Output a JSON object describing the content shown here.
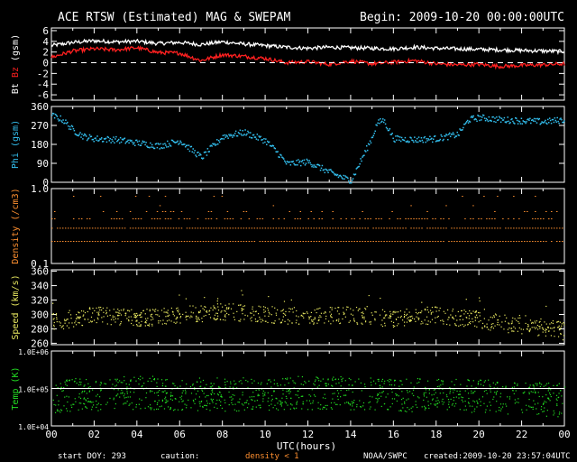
{
  "header": {
    "title": "ACE RTSW (Estimated) MAG & SWEPAM",
    "begin": "Begin: 2009-10-20 00:00:00UTC"
  },
  "footer": {
    "start_doy": "start DOY: 293",
    "caution": "caution:",
    "density_note": "density < 1",
    "agency": "NOAA/SWPC",
    "created": "created:2009-10-20 23:57:04UTC"
  },
  "colors": {
    "bt": "#ffffff",
    "bz": "#ff2020",
    "phi": "#33c0f0",
    "density": "#ff9030",
    "speed": "#e8e860",
    "temp": "#22dd22",
    "axis": "#ffffff",
    "background": "#000000"
  },
  "chart_data": [
    {
      "type": "scatter",
      "ylabel_parts": [
        "Bt",
        "Bz",
        "(gsm)"
      ],
      "yticks": [
        "6",
        "4",
        "2",
        "0",
        "-2",
        "-4",
        "-6"
      ],
      "ylim": [
        -7,
        6.5
      ],
      "xlim": [
        0,
        24
      ],
      "zero_line": true,
      "series": [
        {
          "name": "Bt",
          "x": [
            0,
            1,
            2,
            3,
            4,
            5,
            6,
            7,
            8,
            9,
            10,
            11,
            12,
            13,
            14,
            15,
            16,
            17,
            18,
            19,
            20,
            21,
            22,
            23,
            24
          ],
          "y": [
            3.2,
            3.8,
            4.1,
            3.9,
            4.0,
            3.6,
            3.8,
            3.4,
            3.9,
            3.5,
            3.2,
            2.9,
            2.7,
            2.9,
            2.8,
            2.7,
            2.6,
            2.9,
            2.7,
            2.6,
            2.5,
            2.4,
            2.3,
            2.2,
            2.1
          ]
        },
        {
          "name": "Bz",
          "x": [
            0,
            1,
            2,
            3,
            4,
            5,
            6,
            7,
            8,
            9,
            10,
            11,
            12,
            13,
            14,
            15,
            16,
            17,
            18,
            19,
            20,
            21,
            22,
            23,
            24
          ],
          "y": [
            1.0,
            2.2,
            2.6,
            2.4,
            2.8,
            1.9,
            1.8,
            0.4,
            1.5,
            1.2,
            0.8,
            0.0,
            0.2,
            -0.3,
            0.3,
            -0.2,
            0.1,
            0.4,
            -0.2,
            -0.4,
            -0.3,
            -0.7,
            -0.5,
            -0.4,
            -0.2
          ]
        }
      ]
    },
    {
      "type": "scatter",
      "ylabel_parts": [
        "Phi",
        "(gsm)"
      ],
      "yticks": [
        "360",
        "270",
        "180",
        "90",
        "0"
      ],
      "ylim": [
        0,
        360
      ],
      "xlim": [
        0,
        24
      ],
      "series": [
        {
          "name": "Phi",
          "x": [
            0,
            0.5,
            1,
            1.5,
            2,
            3,
            4,
            5,
            6,
            7,
            8,
            9,
            10,
            10.5,
            11,
            12,
            13,
            13.5,
            14,
            15,
            15.2,
            15.5,
            16,
            17,
            18,
            19,
            19.5,
            20,
            21,
            22,
            23,
            24
          ],
          "y": [
            320,
            300,
            250,
            220,
            210,
            205,
            190,
            175,
            200,
            120,
            220,
            240,
            200,
            150,
            90,
            100,
            50,
            30,
            10,
            220,
            280,
            300,
            210,
            205,
            210,
            230,
            300,
            310,
            300,
            295,
            290,
            300
          ]
        }
      ]
    },
    {
      "type": "scatter",
      "ylabel_parts": [
        "Density",
        "(/cm3)"
      ],
      "yticks": [
        "1.0",
        "0.1"
      ],
      "log_scale": true,
      "ylim": [
        0.1,
        1.0
      ],
      "xlim": [
        0,
        24
      ],
      "series": [
        {
          "name": "Density",
          "levels": [
            0.2,
            0.3,
            0.4,
            0.5,
            0.6,
            0.8
          ],
          "density": [
            0.95,
            0.95,
            0.55,
            0.2,
            0.05,
            0.04
          ]
        }
      ]
    },
    {
      "type": "scatter",
      "ylabel_parts": [
        "Speed",
        "(km/s)"
      ],
      "yticks": [
        "360",
        "340",
        "320",
        "300",
        "280",
        "260"
      ],
      "ylim": [
        258,
        362
      ],
      "xlim": [
        0,
        24
      ],
      "series": [
        {
          "name": "Speed",
          "x": [
            0,
            2,
            4,
            6,
            8,
            10,
            12,
            14,
            16,
            18,
            20,
            22,
            24
          ],
          "y": [
            290,
            300,
            295,
            300,
            305,
            300,
            298,
            300,
            295,
            300,
            292,
            285,
            280
          ],
          "spread": 12
        }
      ]
    },
    {
      "type": "scatter",
      "ylabel_parts": [
        "Temp",
        "(K)"
      ],
      "yticks": [
        "1.0E+06",
        "1.0E+05",
        "1.0E+04"
      ],
      "log_scale": true,
      "ylim": [
        10000,
        1000000
      ],
      "xlim": [
        0,
        24
      ],
      "ref_line": 100000,
      "series": [
        {
          "name": "Temp",
          "x": [
            0,
            4,
            8,
            12,
            16,
            20,
            24
          ],
          "y_log10": [
            4.8,
            4.9,
            4.85,
            4.9,
            4.85,
            4.8,
            4.7
          ],
          "spread": 0.45
        }
      ]
    }
  ],
  "x_axis": {
    "ticks": [
      "00",
      "02",
      "04",
      "06",
      "08",
      "10",
      "12",
      "14",
      "16",
      "18",
      "20",
      "22",
      "00"
    ],
    "label": "UTC(hours)"
  }
}
